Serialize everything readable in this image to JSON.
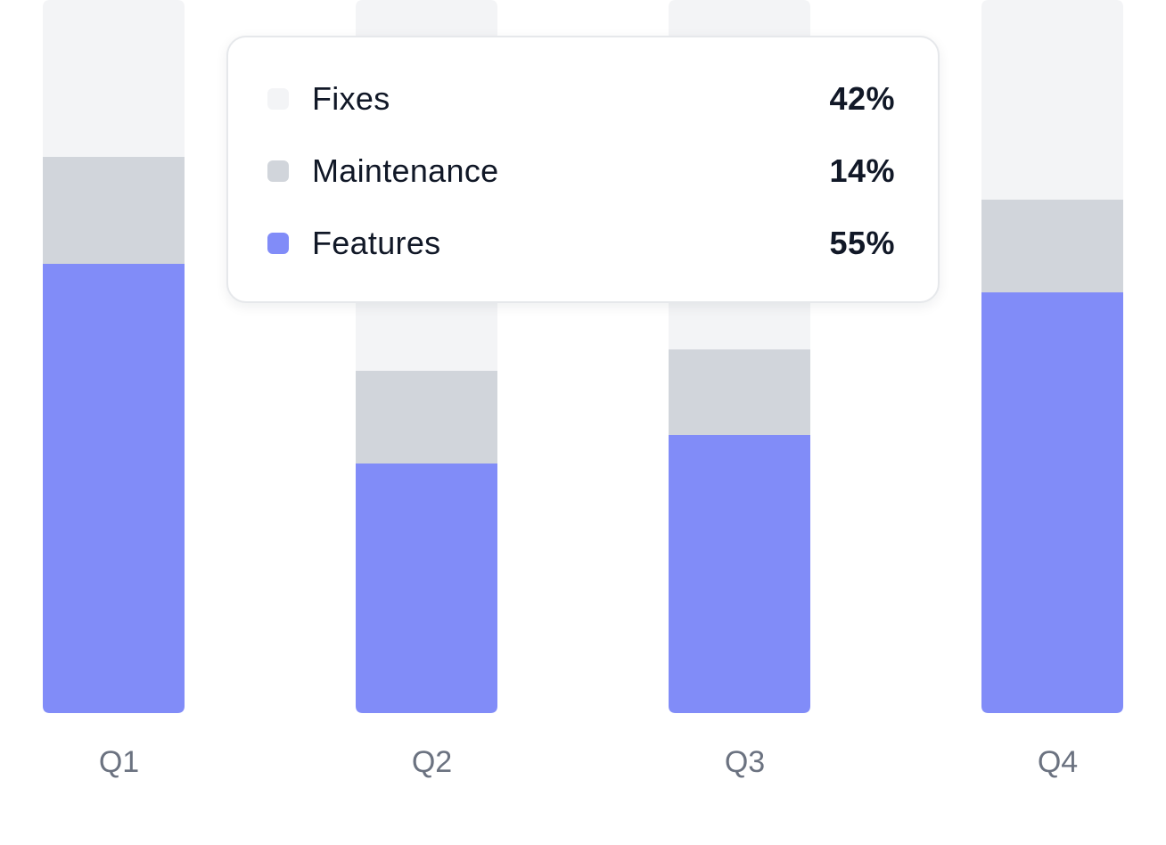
{
  "chart_data": {
    "type": "bar",
    "stacked": true,
    "normalized": true,
    "categories": [
      "Q1",
      "Q2",
      "Q3",
      "Q4"
    ],
    "series": [
      {
        "name": "Features",
        "color": "#818cf8",
        "values": [
          63,
          35,
          39,
          59
        ]
      },
      {
        "name": "Maintenance",
        "color": "#d1d5db",
        "values": [
          15,
          13,
          12,
          13
        ]
      },
      {
        "name": "Fixes",
        "color": "#f3f4f6",
        "values": [
          22,
          52,
          49,
          28
        ]
      }
    ],
    "ylim": [
      0,
      100
    ],
    "grid": false,
    "title": "",
    "xlabel": "",
    "ylabel": ""
  },
  "tooltip": {
    "rows": [
      {
        "label": "Fixes",
        "value": "42%",
        "color": "#f3f4f6"
      },
      {
        "label": "Maintenance",
        "value": "14%",
        "color": "#d1d5db"
      },
      {
        "label": "Features",
        "value": "55%",
        "color": "#818cf8"
      }
    ]
  }
}
